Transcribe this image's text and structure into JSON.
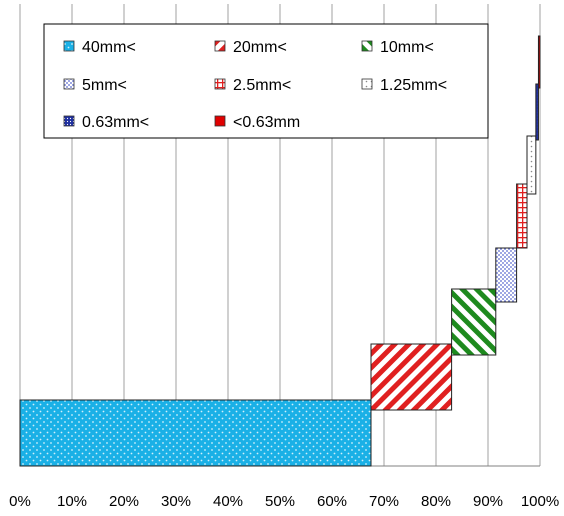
{
  "chart_data": {
    "type": "bar",
    "subtype": "stacked-horizontal-waterfall",
    "title": "",
    "xlabel": "",
    "ylabel": "",
    "xlim": [
      0,
      100
    ],
    "x_tick_labels": [
      "0%",
      "10%",
      "20%",
      "30%",
      "40%",
      "50%",
      "60%",
      "70%",
      "80%",
      "90%",
      "100%"
    ],
    "grid": true,
    "legend_position": "top",
    "series": [
      {
        "name": "40mm<",
        "start": 0,
        "value": 67.5,
        "color": "#1ab0e6",
        "pattern": "dots"
      },
      {
        "name": "20mm<",
        "start": 67.5,
        "value": 15.5,
        "color": "#e02020",
        "pattern": "hatch"
      },
      {
        "name": "10mm<",
        "start": 83.0,
        "value": 8.5,
        "color": "#1e8a1e",
        "pattern": "hatch"
      },
      {
        "name": "5mm<",
        "start": 91.5,
        "value": 4.0,
        "color": "#6a78d8",
        "pattern": "dots"
      },
      {
        "name": "2.5mm<",
        "start": 95.5,
        "value": 2.0,
        "color": "#e02020",
        "pattern": "grid"
      },
      {
        "name": "1.25mm<",
        "start": 97.5,
        "value": 1.7,
        "color": "#9a9a9a",
        "pattern": "sparse"
      },
      {
        "name": "0.63mm<",
        "start": 99.2,
        "value": 0.5,
        "color": "#2030a0",
        "pattern": "dense"
      },
      {
        "name": "<0.63mm",
        "start": 99.7,
        "value": 0.3,
        "color": "#e00000",
        "pattern": "solid"
      }
    ]
  }
}
